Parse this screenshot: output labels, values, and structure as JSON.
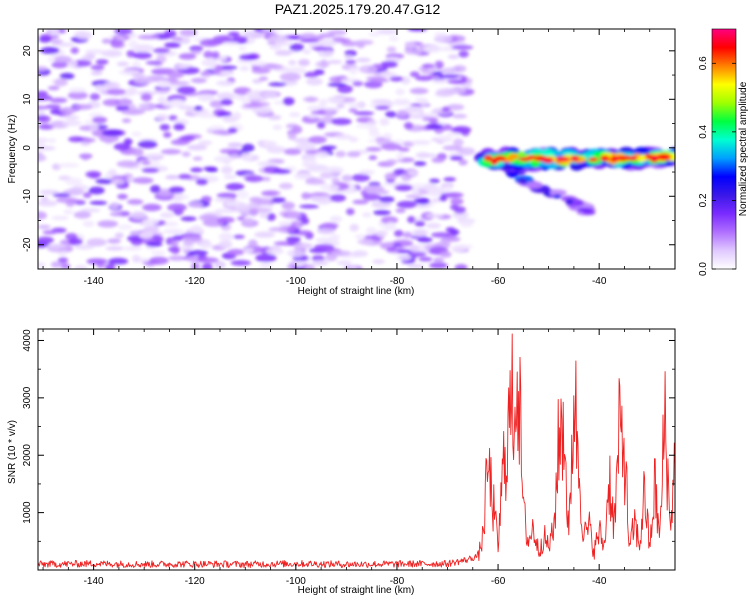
{
  "title": "PAZ1.2025.179.20.47.G12",
  "chart_data": [
    {
      "type": "heatmap",
      "name": "spectrogram",
      "xlabel": "Height of straight line (km)",
      "ylabel": "Frequency (Hz)",
      "xlim": [
        -151,
        -25
      ],
      "ylim": [
        -25,
        24.5
      ],
      "x_ticks": [
        -140,
        -120,
        -100,
        -80,
        -60,
        -40
      ],
      "y_ticks": [
        -20,
        -10,
        0,
        10,
        20
      ],
      "colorbar": {
        "label": "Normalized spectral amplitude",
        "range": [
          0,
          0.7
        ],
        "ticks": [
          0.0,
          0.2,
          0.4,
          0.6
        ],
        "colormap": [
          "#ffffff",
          "#e0c8ff",
          "#b070ff",
          "#7a2bff",
          "#3a18e8",
          "#0000ff",
          "#00a0ff",
          "#00ffd0",
          "#00ff40",
          "#a0ff00",
          "#ffff00",
          "#ff8000",
          "#ff0000",
          "#ff0080"
        ]
      },
      "features": {
        "noise_region": {
          "x_range": [
            -151,
            -66
          ],
          "freq_range": [
            -25,
            24.5
          ],
          "amplitude_range": [
            0.02,
            0.18
          ]
        },
        "signal_band": {
          "x_range": [
            -63,
            -25
          ],
          "center_freq_at_start": -2.5,
          "center_freq_at_end": -2.0,
          "amplitude_range": [
            0.2,
            0.7
          ]
        },
        "secondary_trace": {
          "x_range": [
            -58,
            -42
          ],
          "freq_start": -5,
          "freq_end": -13,
          "amplitude_range": [
            0.08,
            0.35
          ]
        }
      }
    },
    {
      "type": "line",
      "name": "snr",
      "xlabel": "Height of straight line (km)",
      "ylabel": "SNR (10 * v/v)",
      "xlim": [
        -151,
        -25
      ],
      "ylim": [
        0,
        4200
      ],
      "x_ticks": [
        -140,
        -120,
        -100,
        -80,
        -60,
        -40
      ],
      "y_ticks": [
        1000,
        2000,
        3000,
        4000
      ],
      "series": [
        {
          "color": "#ee2222",
          "x": [
            -151,
            -140,
            -130,
            -120,
            -110,
            -100,
            -90,
            -80,
            -70,
            -66,
            -64,
            -63,
            -62,
            -61,
            -60,
            -59,
            -58,
            -57,
            -56,
            -55,
            -54,
            -53,
            -52,
            -51,
            -50,
            -49,
            -48,
            -47,
            -46,
            -45,
            -44,
            -43,
            -42,
            -41,
            -40,
            -39,
            -38,
            -37,
            -36,
            -35,
            -34,
            -33,
            -32,
            -31,
            -30,
            -29,
            -28,
            -27,
            -26,
            -25
          ],
          "values": [
            100,
            110,
            100,
            105,
            100,
            110,
            100,
            105,
            110,
            180,
            250,
            700,
            2200,
            1400,
            500,
            2100,
            3000,
            3600,
            4200,
            1200,
            600,
            900,
            400,
            700,
            500,
            800,
            2700,
            3200,
            600,
            3900,
            2200,
            700,
            900,
            400,
            800,
            500,
            2000,
            900,
            2900,
            2600,
            400,
            1000,
            500,
            1700,
            400,
            1800,
            600,
            3400,
            900,
            2300
          ]
        }
      ]
    }
  ]
}
